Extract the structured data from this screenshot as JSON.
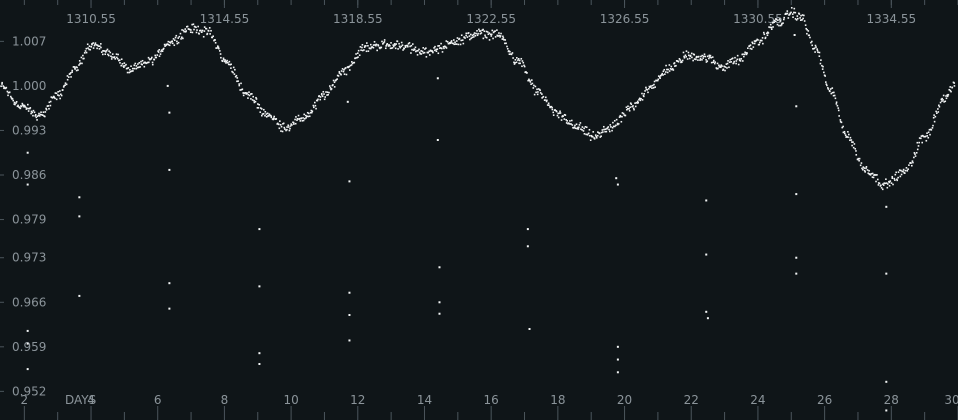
{
  "chart_data": {
    "type": "scatter",
    "xlabel": "DAYS",
    "xlim": [
      1.27,
      30
    ],
    "ylim": [
      0.9475,
      1.0135
    ],
    "x_ticks": [
      "2",
      "4",
      "6",
      "8",
      "10",
      "12",
      "14",
      "16",
      "18",
      "20",
      "22",
      "24",
      "26",
      "28",
      "30"
    ],
    "top_ticks": [
      "1310.55",
      "1314.55",
      "1318.55",
      "1322.55",
      "1326.55",
      "1330.55",
      "1334.55"
    ],
    "y_ticks": [
      "1.007",
      "1.000",
      "0.993",
      "0.986",
      "0.979",
      "0.973",
      "0.966",
      "0.959",
      "0.952"
    ],
    "grid": false,
    "colors": {
      "background": "#0f1518",
      "points": "#f2f4f5",
      "tick_labels": "#8b949a",
      "tick_marks": "#4b555c"
    },
    "series": [
      {
        "trend": [
          [
            1.3,
            1.0
          ],
          [
            1.9,
            0.9968
          ],
          [
            2.45,
            0.9953
          ],
          [
            3.0,
            0.9985
          ],
          [
            3.5,
            1.0025
          ],
          [
            4.0,
            1.0065
          ],
          [
            4.6,
            1.005
          ],
          [
            5.2,
            1.0025
          ],
          [
            5.8,
            1.004
          ],
          [
            6.4,
            1.007
          ],
          [
            7.0,
            1.009
          ],
          [
            7.5,
            1.0085
          ],
          [
            8.1,
            1.0035
          ],
          [
            8.7,
            0.9985
          ],
          [
            9.3,
            0.9955
          ],
          [
            9.8,
            0.9935
          ],
          [
            10.4,
            0.995
          ],
          [
            11.0,
            0.9985
          ],
          [
            11.6,
            1.0025
          ],
          [
            12.2,
            1.006
          ],
          [
            12.8,
            1.0065
          ],
          [
            13.4,
            1.0063
          ],
          [
            13.9,
            1.0053
          ],
          [
            14.4,
            1.0058
          ],
          [
            15.0,
            1.0072
          ],
          [
            15.6,
            1.0082
          ],
          [
            16.2,
            1.008
          ],
          [
            16.8,
            1.004
          ],
          [
            17.4,
            0.999
          ],
          [
            18.0,
            0.9955
          ],
          [
            18.6,
            0.9935
          ],
          [
            19.1,
            0.992
          ],
          [
            19.6,
            0.9935
          ],
          [
            20.2,
            0.9965
          ],
          [
            20.8,
            1.0
          ],
          [
            21.4,
            1.003
          ],
          [
            21.9,
            1.0048
          ],
          [
            22.4,
            1.0045
          ],
          [
            22.9,
            1.003
          ],
          [
            23.4,
            1.004
          ],
          [
            24.0,
            1.007
          ],
          [
            24.6,
            1.01
          ],
          [
            25.0,
            1.0115
          ],
          [
            25.3,
            1.0108
          ],
          [
            25.7,
            1.006
          ],
          [
            26.2,
            0.999
          ],
          [
            26.7,
            0.992
          ],
          [
            27.2,
            0.987
          ],
          [
            27.8,
            0.9845
          ],
          [
            28.4,
            0.9865
          ],
          [
            29.0,
            0.992
          ],
          [
            29.6,
            0.998
          ],
          [
            29.9,
            1.0
          ]
        ],
        "outliers": [
          [
            2.1,
            0.9895
          ],
          [
            2.1,
            0.9845
          ],
          [
            2.1,
            0.9615
          ],
          [
            2.1,
            0.9595
          ],
          [
            2.1,
            0.9555
          ],
          [
            3.65,
            0.9825
          ],
          [
            3.65,
            0.9795
          ],
          [
            3.65,
            0.967
          ],
          [
            6.3,
            1.0
          ],
          [
            6.35,
            0.9958
          ],
          [
            6.35,
            0.9868
          ],
          [
            6.35,
            0.969
          ],
          [
            6.35,
            0.965
          ],
          [
            9.05,
            0.9775
          ],
          [
            9.05,
            0.9685
          ],
          [
            9.05,
            0.958
          ],
          [
            9.05,
            0.9563
          ],
          [
            11.7,
            0.9975
          ],
          [
            11.75,
            0.985
          ],
          [
            11.75,
            0.9675
          ],
          [
            11.75,
            0.964
          ],
          [
            11.75,
            0.96
          ],
          [
            14.4,
            1.0012
          ],
          [
            14.4,
            0.9915
          ],
          [
            14.45,
            0.9715
          ],
          [
            14.45,
            0.966
          ],
          [
            14.45,
            0.9642
          ],
          [
            17.1,
            0.9775
          ],
          [
            17.1,
            0.9748
          ],
          [
            17.15,
            0.9618
          ],
          [
            19.75,
            0.9855
          ],
          [
            19.8,
            0.9845
          ],
          [
            19.8,
            0.959
          ],
          [
            19.8,
            0.957
          ],
          [
            19.8,
            0.955
          ],
          [
            22.45,
            0.982
          ],
          [
            22.45,
            0.9735
          ],
          [
            22.45,
            0.9645
          ],
          [
            22.5,
            0.9635
          ],
          [
            25.1,
            1.008
          ],
          [
            25.15,
            0.9968
          ],
          [
            25.15,
            0.983
          ],
          [
            25.15,
            0.973
          ],
          [
            25.15,
            0.9705
          ],
          [
            27.85,
            0.981
          ],
          [
            27.85,
            0.9705
          ],
          [
            27.85,
            0.9535
          ],
          [
            27.85,
            0.949
          ]
        ]
      }
    ]
  }
}
